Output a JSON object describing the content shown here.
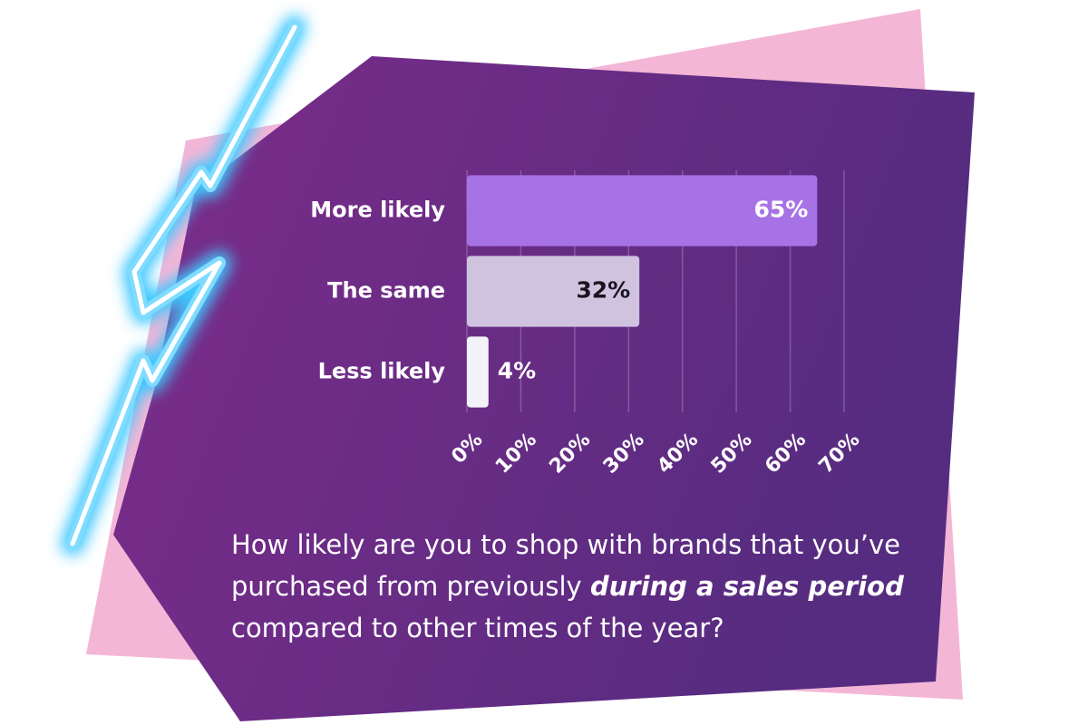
{
  "chart_data": {
    "type": "bar",
    "orientation": "horizontal",
    "title": [
      "How likely are you to shop with brands that you’ve purchased from previously ",
      "during a sales period",
      " compared to other times of the year?"
    ],
    "categories": [
      "More likely",
      "The same",
      "Less likely"
    ],
    "values": [
      65,
      32,
      4
    ],
    "value_labels": [
      "65%",
      "32%",
      "4%"
    ],
    "colors": [
      "#a772e6",
      "#cfc3e0",
      "#f3f2f8"
    ],
    "xlim": [
      0,
      70
    ],
    "xticks": [
      {
        "value": 0,
        "label": "0%"
      },
      {
        "value": 10,
        "label": "10%"
      },
      {
        "value": 20,
        "label": "20%"
      },
      {
        "value": 30,
        "label": "30%"
      },
      {
        "value": 40,
        "label": "40%"
      },
      {
        "value": 50,
        "label": "50%"
      },
      {
        "value": 60,
        "label": "60%"
      },
      {
        "value": 70,
        "label": "70%"
      }
    ],
    "grid": true
  }
}
